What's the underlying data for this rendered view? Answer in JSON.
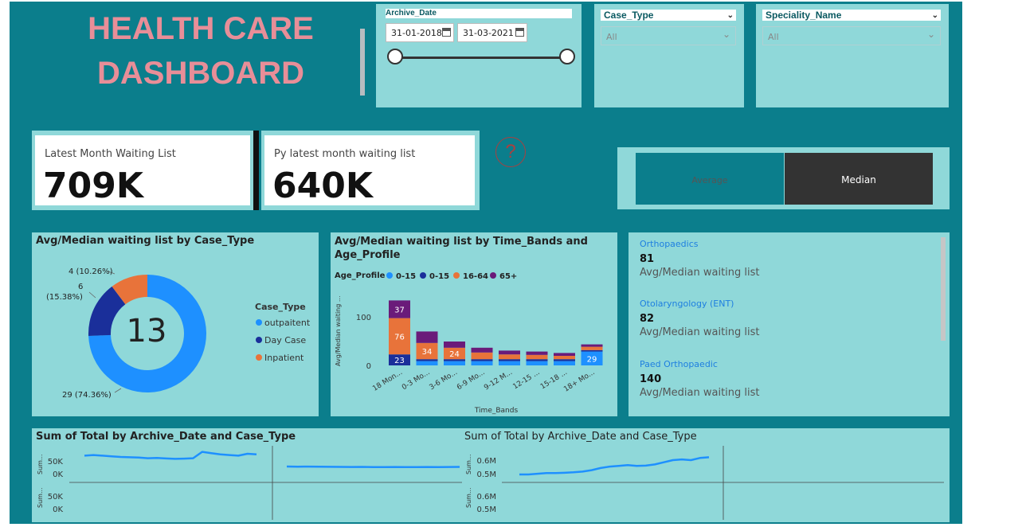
{
  "title_line1": "HEALTH CARE",
  "title_line2": "DASHBOARD",
  "date_slicer": {
    "label": "Archive_Date",
    "start": "31-01-2018",
    "end": "31-03-2021"
  },
  "case_type_slicer": {
    "label": "Case_Type",
    "value": "All"
  },
  "speciality_slicer": {
    "label": "Speciality_Name",
    "value": "All"
  },
  "kpi1": {
    "label": "Latest Month Waiting List",
    "value": "709K"
  },
  "kpi2": {
    "label": "Py latest month waiting list",
    "value": "640K"
  },
  "help_glyph": "?",
  "toggle": {
    "average": "Average",
    "median": "Median",
    "selected": "median"
  },
  "donut": {
    "title": "Avg/Median waiting list by Case_Type",
    "center_value": "13",
    "legend_title": "Case_Type",
    "labels": [
      "4 (10.26%)",
      "6",
      "(15.38%)",
      "29 (74.36%)"
    ]
  },
  "bar": {
    "title_line1": "Avg/Median waiting list by Time_Bands and",
    "title_line2": "Age_Profile",
    "legend_title": "Age_Profile",
    "y_label": "Avg/Median waiting ...",
    "x_label": "Time_Bands",
    "y_ticks": [
      "100",
      "0"
    ]
  },
  "specialities": [
    {
      "name": "Orthopaedics",
      "value": "81",
      "caption": "Avg/Median waiting list"
    },
    {
      "name": "Otolaryngology (ENT)",
      "value": "82",
      "caption": "Avg/Median waiting list"
    },
    {
      "name": "Paed Orthopaedic",
      "value": "140",
      "caption": "Avg/Median waiting list"
    }
  ],
  "line1": {
    "title": "Sum of Total by Archive_Date and Case_Type",
    "ticks_top": [
      "50K",
      "0K"
    ],
    "ticks_bottom": [
      "50K",
      "0K"
    ],
    "axis_label": "Sum..."
  },
  "line2": {
    "title": "Sum of Total by Archive_Date and Case_Type",
    "ticks_top": [
      "0.6M",
      "0.5M"
    ],
    "ticks_bottom": [
      "0.6M",
      "0.5M"
    ],
    "axis_label": "Sum..."
  },
  "colors": {
    "teal": "#0b7e8c",
    "card": "#8fd8d9",
    "title": "#e88e98",
    "blue": "#1e90ff",
    "navy": "#1a2f9a",
    "orange": "#e8733a",
    "purple": "#6a1b7a"
  },
  "chart_data": [
    {
      "type": "pie",
      "title": "Avg/Median waiting list by Case_Type",
      "legend": {
        "title": "Case_Type",
        "placement": "right"
      },
      "categories": [
        "outpaitent",
        "Day Case",
        "Inpatient"
      ],
      "values": [
        29,
        6,
        4
      ],
      "percent_labels": [
        "74.36%",
        "15.38%",
        "10.26%"
      ],
      "colors": [
        "#1e90ff",
        "#1a2f9a",
        "#e8733a"
      ]
    },
    {
      "type": "bar",
      "stacked": true,
      "title": "Avg/Median waiting list by Time_Bands and Age_Profile",
      "xlabel": "Time_Bands",
      "ylabel": "Avg/Median waiting ...",
      "categories": [
        "18 Mon...",
        "0-3 Mo...",
        "3-6 Mo...",
        "6-9 Mo...",
        "9-12 M...",
        "12-15 ...",
        "15-18 ...",
        "18+ Mo..."
      ],
      "ylim": [
        0,
        140
      ],
      "series": [
        {
          "name": "0-15",
          "color": "#1e90ff",
          "values": [
            0,
            9,
            9,
            9,
            9,
            9,
            9,
            29
          ]
        },
        {
          "name": "0-15",
          "color": "#1a2f9a",
          "values": [
            23,
            4,
            4,
            4,
            4,
            4,
            4,
            3
          ]
        },
        {
          "name": "16-64",
          "color": "#e8733a",
          "values": [
            76,
            34,
            24,
            14,
            10,
            9,
            7,
            7
          ]
        },
        {
          "name": "65+",
          "color": "#6a1b7a",
          "values": [
            37,
            24,
            13,
            10,
            8,
            7,
            6,
            5
          ]
        }
      ],
      "data_labels": [
        [
          null,
          null,
          null,
          null,
          null,
          null,
          null,
          29
        ],
        [
          23,
          null,
          null,
          null,
          null,
          null,
          null,
          null
        ],
        [
          76,
          34,
          24,
          null,
          null,
          null,
          null,
          null
        ],
        [
          37,
          null,
          null,
          null,
          null,
          null,
          null,
          null
        ]
      ]
    },
    {
      "type": "line",
      "title": "Sum of Total by Archive_Date and Case_Type",
      "ylim": [
        0,
        60000
      ],
      "series": [
        {
          "values": [
            56000,
            56500,
            56000,
            55500,
            55000,
            54800,
            54500,
            54000,
            54200,
            53800,
            53500,
            53700,
            54000,
            59000,
            58000,
            57000,
            56500,
            56000,
            57500,
            57000
          ]
        },
        {
          "values": [
            10000,
            9800,
            9900,
            9700,
            9600,
            9500,
            9400,
            9500,
            9300,
            9200,
            9400,
            9300,
            9200,
            9400,
            9300,
            9400,
            9500
          ]
        }
      ]
    },
    {
      "type": "line",
      "title": "Sum of Total by Archive_Date and Case_Type",
      "ylim": [
        0.45,
        0.65
      ],
      "series": [
        {
          "values": [
            0.5,
            0.5,
            0.505,
            0.51,
            0.51,
            0.512,
            0.515,
            0.52,
            0.53,
            0.545,
            0.555,
            0.56,
            0.565,
            0.56,
            0.562,
            0.57,
            0.585,
            0.6,
            0.605,
            0.6,
            0.615,
            0.62
          ]
        }
      ]
    }
  ]
}
